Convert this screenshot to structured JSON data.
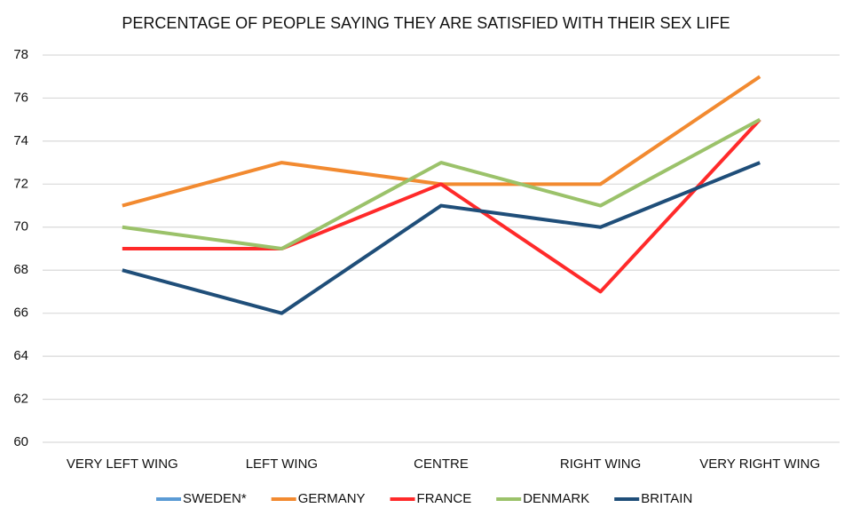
{
  "chart_data": {
    "type": "line",
    "title": "PERCENTAGE OF PEOPLE SAYING THEY ARE SATISFIED WITH THEIR SEX LIFE",
    "categories": [
      "VERY LEFT WING",
      "LEFT WING",
      "CENTRE",
      "RIGHT WING",
      "VERY RIGHT WING"
    ],
    "series": [
      {
        "name": "SWEDEN*",
        "color": "#5b9bd5",
        "values": [
          null,
          null,
          null,
          null,
          null
        ]
      },
      {
        "name": "GERMANY",
        "color": "#f28a30",
        "values": [
          71,
          73,
          72,
          72,
          77
        ]
      },
      {
        "name": "FRANCE",
        "color": "#ff2a2a",
        "values": [
          69,
          69,
          72,
          67,
          75
        ]
      },
      {
        "name": "DENMARK",
        "color": "#9bc26a",
        "values": [
          70,
          69,
          73,
          71,
          75
        ]
      },
      {
        "name": "BRITAIN",
        "color": "#1f4e79",
        "values": [
          68,
          66,
          71,
          70,
          73
        ]
      }
    ],
    "ylim": [
      60,
      78
    ],
    "yticks": [
      60,
      62,
      64,
      66,
      68,
      70,
      72,
      74,
      76,
      78
    ],
    "grid": true,
    "legend": "bottom"
  }
}
